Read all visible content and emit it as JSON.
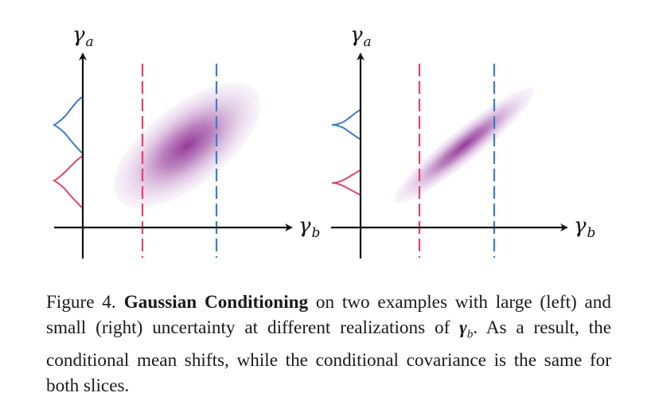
{
  "colors": {
    "pink": "#e0446f",
    "blue": "#3b7ec9",
    "purple_core": "#8e2e94",
    "purple_edge": "#dccbe6",
    "axis": "#111111"
  },
  "panels": [
    {
      "id": "left",
      "y_axis_symbol": "γ",
      "y_axis_sub": "a",
      "x_axis_symbol": "γ",
      "x_axis_sub": "b"
    },
    {
      "id": "right",
      "y_axis_symbol": "γ",
      "y_axis_sub": "a",
      "x_axis_symbol": "γ",
      "x_axis_sub": "b"
    }
  ],
  "caption": {
    "figure_label": "Figure 4.",
    "title_bold": "Gaussian Conditioning",
    "text_before_symbol": " on two examples with large (left) and small (right) uncertainty at different realizations of ",
    "symbol": "γ",
    "symbol_sub": "b",
    "text_after_symbol": ". As a result, the conditional mean shifts, while the conditional covariance is the same for both slices."
  }
}
